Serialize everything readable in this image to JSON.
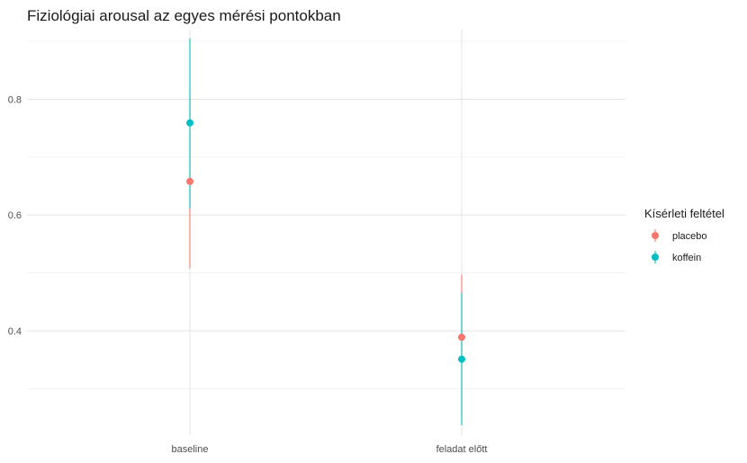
{
  "chart_data": {
    "type": "errorbar",
    "title": "Fiziológiai arousal az egyes mérési pontokban",
    "xlabel": "",
    "ylabel": "",
    "categories": [
      "baseline",
      "feladat előtt"
    ],
    "y_ticks": [
      0.4,
      0.6,
      0.8
    ],
    "y_ticks_labels": [
      "0.4",
      "0.6",
      "0.8"
    ],
    "ylim": [
      0.22,
      0.92
    ],
    "grid": true,
    "legend": {
      "title": "Kísérleti feltétel",
      "position": "right"
    },
    "series": [
      {
        "name": "placebo",
        "color": "#F8766D",
        "mean": [
          0.658,
          0.389
        ],
        "lower": [
          0.508,
          0.251
        ],
        "upper": [
          0.806,
          0.497
        ]
      },
      {
        "name": "koffein",
        "color": "#00BFC4",
        "mean": [
          0.759,
          0.351
        ],
        "lower": [
          0.612,
          0.237
        ],
        "upper": [
          0.905,
          0.465
        ]
      }
    ]
  }
}
